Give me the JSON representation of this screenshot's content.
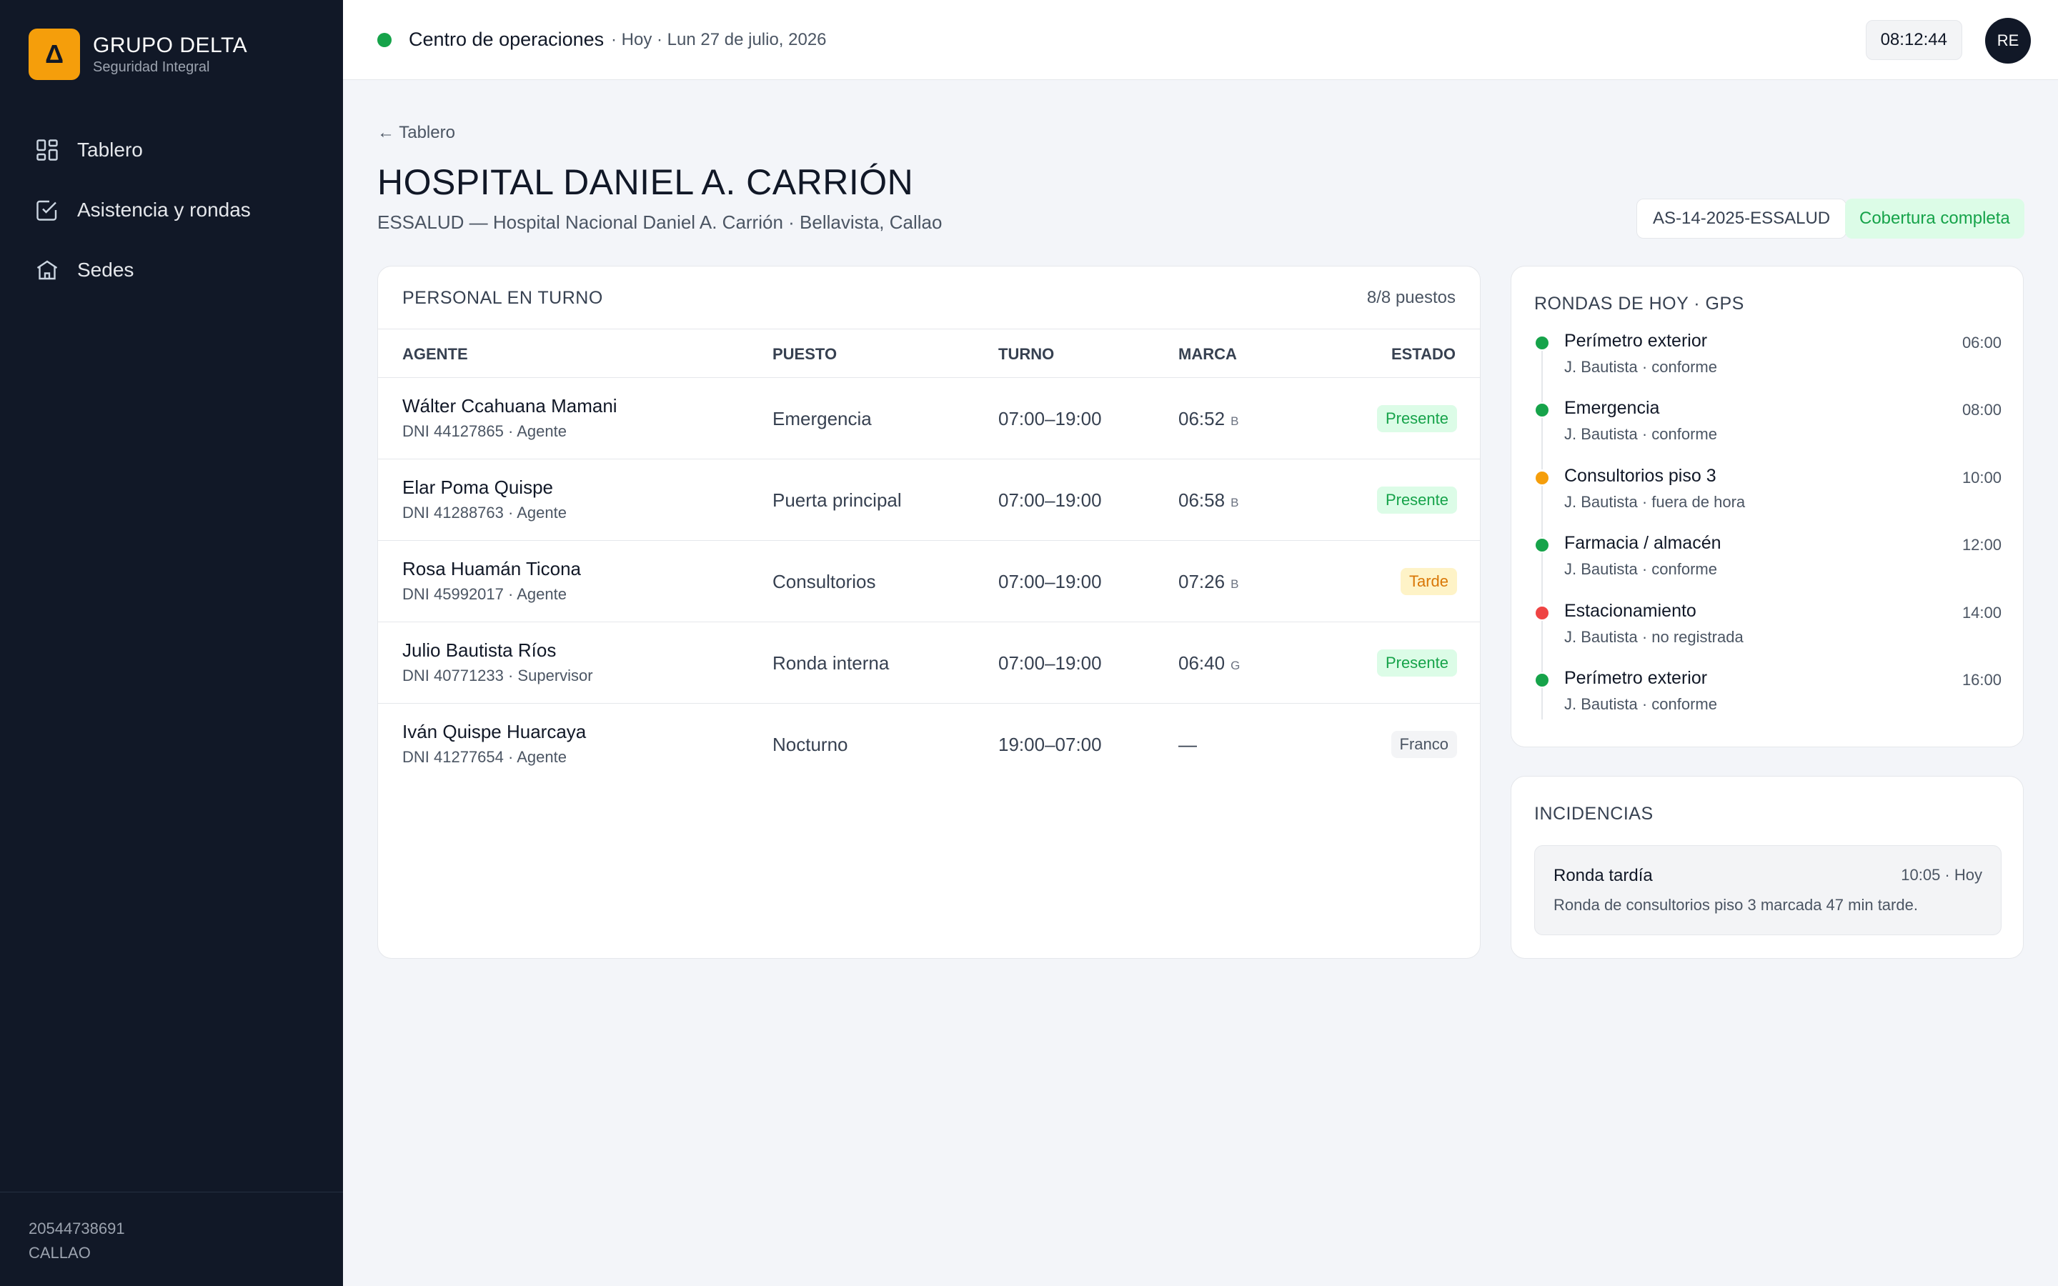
{
  "brand": {
    "logo_glyph": "Δ",
    "name": "GRUPO DELTA",
    "subtitle": "Seguridad Integral",
    "accent": "#f59e0b"
  },
  "sidebar": {
    "items": [
      {
        "label": "Tablero",
        "icon": "grid-icon"
      },
      {
        "label": "Asistencia y rondas",
        "icon": "checkbox-icon"
      },
      {
        "label": "Sedes",
        "icon": "building-icon"
      }
    ],
    "footer": {
      "ruc": "20544738691",
      "city": "CALLAO"
    }
  },
  "topbar": {
    "status_color": "#16a34a",
    "title": "Centro de operaciones",
    "date": "· Hoy · Lun 27 de julio, 2026",
    "clock": "08:12:44",
    "avatar": "RE"
  },
  "header": {
    "back": "← Tablero",
    "title": "HOSPITAL DANIEL A. CARRIÓN",
    "subtitle": "ESSALUD — Hospital Nacional Daniel A. Carrión · Bellavista, Callao",
    "code": "AS-14-2025-ESSALUD",
    "coverage": "Cobertura completa"
  },
  "staff": {
    "title": "PERSONAL EN TURNO",
    "count": "8/8 puestos",
    "columns": {
      "agent": "AGENTE",
      "post": "PUESTO",
      "shift": "TURNO",
      "mark": "MARCA",
      "status": "ESTADO"
    },
    "rows": [
      {
        "name": "Wálter Ccahuana Mamani",
        "meta": "DNI 44127865 · Agente",
        "post": "Emergencia",
        "shift": "07:00–19:00",
        "mark": "06:52",
        "mark_src": "B",
        "status": "Presente",
        "status_kind": "ok"
      },
      {
        "name": "Elar Poma Quispe",
        "meta": "DNI 41288763 · Agente",
        "post": "Puerta principal",
        "shift": "07:00–19:00",
        "mark": "06:58",
        "mark_src": "B",
        "status": "Presente",
        "status_kind": "ok"
      },
      {
        "name": "Rosa Huamán Ticona",
        "meta": "DNI 45992017 · Agente",
        "post": "Consultorios",
        "shift": "07:00–19:00",
        "mark": "07:26",
        "mark_src": "B",
        "status": "Tarde",
        "status_kind": "late"
      },
      {
        "name": "Julio Bautista Ríos",
        "meta": "DNI 40771233 · Supervisor",
        "post": "Ronda interna",
        "shift": "07:00–19:00",
        "mark": "06:40",
        "mark_src": "G",
        "status": "Presente",
        "status_kind": "ok"
      },
      {
        "name": "Iván Quispe Huarcaya",
        "meta": "DNI 41277654 · Agente",
        "post": "Nocturno",
        "shift": "19:00–07:00",
        "mark": "—",
        "mark_src": "",
        "status": "Franco",
        "status_kind": "off"
      }
    ]
  },
  "rounds": {
    "title": "RONDAS DE HOY · GPS",
    "items": [
      {
        "name": "Perímetro exterior",
        "meta": "J. Bautista · conforme",
        "time": "06:00",
        "color": "#16a34a"
      },
      {
        "name": "Emergencia",
        "meta": "J. Bautista · conforme",
        "time": "08:00",
        "color": "#16a34a"
      },
      {
        "name": "Consultorios piso 3",
        "meta": "J. Bautista · fuera de hora",
        "time": "10:00",
        "color": "#f59e0b"
      },
      {
        "name": "Farmacia / almacén",
        "meta": "J. Bautista · conforme",
        "time": "12:00",
        "color": "#16a34a"
      },
      {
        "name": "Estacionamiento",
        "meta": "J. Bautista · no registrada",
        "time": "14:00",
        "color": "#ef4444"
      },
      {
        "name": "Perímetro exterior",
        "meta": "J. Bautista · conforme",
        "time": "16:00",
        "color": "#16a34a"
      }
    ]
  },
  "incidents": {
    "title": "INCIDENCIAS",
    "items": [
      {
        "name": "Ronda tardía",
        "time": "10:05 · Hoy",
        "desc": "Ronda de consultorios piso 3 marcada 47 min tarde."
      }
    ]
  }
}
